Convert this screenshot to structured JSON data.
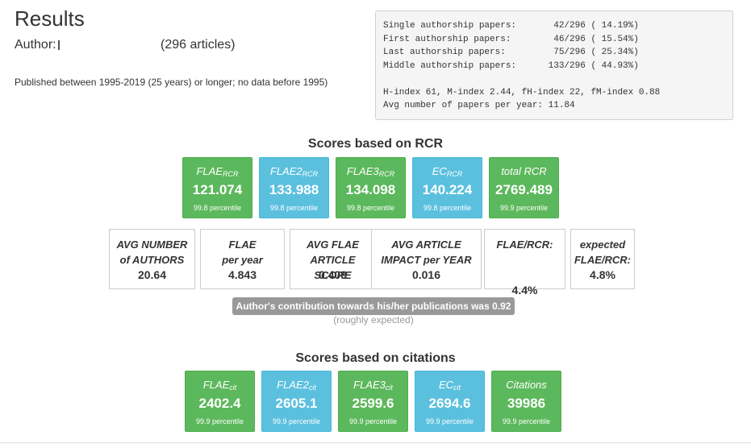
{
  "header": {
    "title": "Results",
    "author_label": "Author:",
    "articles": "(296 articles)",
    "published": "Published between 1995-2019 (25 years) or longer; no data before 1995)"
  },
  "stats": {
    "lines": [
      "Single authorship papers:       42/296 ( 14.19%)",
      "First authorship papers:        46/296 ( 15.54%)",
      "Last authorship papers:         75/296 ( 25.34%)",
      "Middle authorship papers:      133/296 ( 44.93%)",
      "",
      "H-index 61, M-index 2.44, fH-index 22, fM-index 0.88",
      "Avg number of papers per year: 11.84"
    ]
  },
  "rcr": {
    "title": "Scores based on RCR",
    "cards": [
      {
        "label": "FLAE",
        "sub": "RCR",
        "value": "121.074",
        "pct": "99.8 percentile",
        "color": "green"
      },
      {
        "label": "FLAE2",
        "sub": "RCR",
        "value": "133.988",
        "pct": "99.8 percentile",
        "color": "blue"
      },
      {
        "label": "FLAE3",
        "sub": "RCR",
        "value": "134.098",
        "pct": "99.8 percentile",
        "color": "green"
      },
      {
        "label": "EC",
        "sub": "RCR",
        "value": "140.224",
        "pct": "99.8 percentile",
        "color": "blue"
      },
      {
        "label": "total RCR",
        "sub": "",
        "value": "2769.489",
        "pct": "99.9 percentile",
        "color": "green"
      }
    ]
  },
  "metrics": [
    {
      "line1": "AVG NUMBER",
      "line2": "of AUTHORS",
      "value": "20.64"
    },
    {
      "line1": "FLAE",
      "line2": "per year",
      "value": "4.843"
    },
    {
      "line1": "AVG FLAE",
      "line2": "ARTICLE SCORE",
      "value": "0.409"
    },
    {
      "line1": "AVG ARTICLE",
      "line2": "IMPACT per YEAR",
      "value": "0.016"
    },
    {
      "line1": "FLAE/RCR:",
      "line2": "",
      "value": "4.4%"
    },
    {
      "line1": "expected",
      "line2": "FLAE/RCR:",
      "value": "4.8%"
    }
  ],
  "contribution": {
    "badge": "Author's contribution towards his/her publications was 0.92",
    "note": "(roughly expected)"
  },
  "citations": {
    "title": "Scores based on citations",
    "cards": [
      {
        "label": "FLAE",
        "sub": "cit",
        "value": "2402.4",
        "pct": "99.9 percentile",
        "color": "green"
      },
      {
        "label": "FLAE2",
        "sub": "cit",
        "value": "2605.1",
        "pct": "99.9 percentile",
        "color": "blue"
      },
      {
        "label": "FLAE3",
        "sub": "cit",
        "value": "2599.6",
        "pct": "99.9 percentile",
        "color": "green"
      },
      {
        "label": "EC",
        "sub": "cit",
        "value": "2694.6",
        "pct": "99.9 percentile",
        "color": "blue"
      },
      {
        "label": "Citations",
        "sub": "",
        "value": "39986",
        "pct": "99.9 percentile",
        "color": "green"
      }
    ]
  },
  "colors": {
    "green": "#5cb85c",
    "blue": "#5bc0de",
    "badge": "#999999"
  }
}
